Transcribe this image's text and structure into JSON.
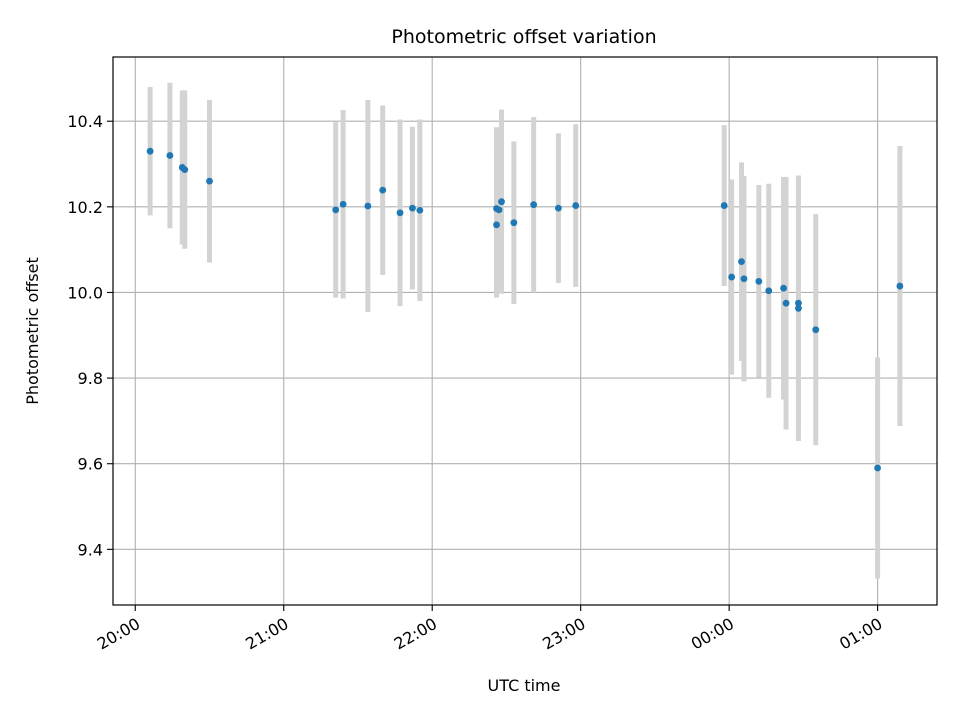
{
  "chart_data": {
    "type": "scatter",
    "title": "Photometric offset variation",
    "xlabel": "UTC time",
    "ylabel": "Photometric offset",
    "xlim": [
      "19:51",
      "01:24"
    ],
    "ylim": [
      9.27,
      10.55
    ],
    "x_ticks": [
      "20:00",
      "21:00",
      "22:00",
      "23:00",
      "00:00",
      "01:00"
    ],
    "y_ticks": [
      "9.4",
      "9.6",
      "9.8",
      "10.0",
      "10.2",
      "10.4"
    ],
    "grid": true,
    "colors": {
      "point": "#1f77b4",
      "errorbar": "#d3d3d3",
      "grid": "#b0b0b0"
    },
    "points": [
      {
        "x": "20:06",
        "y": 10.33,
        "err": 0.15
      },
      {
        "x": "20:14",
        "y": 10.32,
        "err": 0.17
      },
      {
        "x": "20:19",
        "y": 10.292,
        "err": 0.18
      },
      {
        "x": "20:20",
        "y": 10.287,
        "err": 0.185
      },
      {
        "x": "20:30",
        "y": 10.26,
        "err": 0.19
      },
      {
        "x": "21:21",
        "y": 10.193,
        "err": 0.205
      },
      {
        "x": "21:24",
        "y": 10.206,
        "err": 0.22
      },
      {
        "x": "21:34",
        "y": 10.202,
        "err": 0.248
      },
      {
        "x": "21:40",
        "y": 10.239,
        "err": 0.198
      },
      {
        "x": "21:47",
        "y": 10.186,
        "err": 0.218
      },
      {
        "x": "21:52",
        "y": 10.197,
        "err": 0.19
      },
      {
        "x": "21:55",
        "y": 10.192,
        "err": 0.212
      },
      {
        "x": "22:26",
        "y": 10.158,
        "err": 0.17
      },
      {
        "x": "22:26",
        "y": 10.196,
        "err": 0.19
      },
      {
        "x": "22:27",
        "y": 10.193,
        "err": 0.185
      },
      {
        "x": "22:28",
        "y": 10.212,
        "err": 0.215
      },
      {
        "x": "22:33",
        "y": 10.163,
        "err": 0.19
      },
      {
        "x": "22:41",
        "y": 10.205,
        "err": 0.205
      },
      {
        "x": "22:51",
        "y": 10.197,
        "err": 0.175
      },
      {
        "x": "22:58",
        "y": 10.203,
        "err": 0.19
      },
      {
        "x": "23:58",
        "y": 10.203,
        "err": 0.188
      },
      {
        "x": "00:01",
        "y": 10.036,
        "err": 0.228
      },
      {
        "x": "00:05",
        "y": 10.072,
        "err": 0.232
      },
      {
        "x": "00:06",
        "y": 10.032,
        "err": 0.24
      },
      {
        "x": "00:12",
        "y": 10.026,
        "err": 0.225
      },
      {
        "x": "00:16",
        "y": 10.004,
        "err": 0.25
      },
      {
        "x": "00:22",
        "y": 10.01,
        "err": 0.26
      },
      {
        "x": "00:23",
        "y": 9.975,
        "err": 0.295
      },
      {
        "x": "00:28",
        "y": 9.975,
        "err": 0.298
      },
      {
        "x": "00:28",
        "y": 9.963,
        "err": 0.31
      },
      {
        "x": "00:35",
        "y": 9.913,
        "err": 0.27
      },
      {
        "x": "01:00",
        "y": 9.59,
        "err": 0.258
      },
      {
        "x": "01:09",
        "y": 10.015,
        "err": 0.327
      }
    ]
  }
}
